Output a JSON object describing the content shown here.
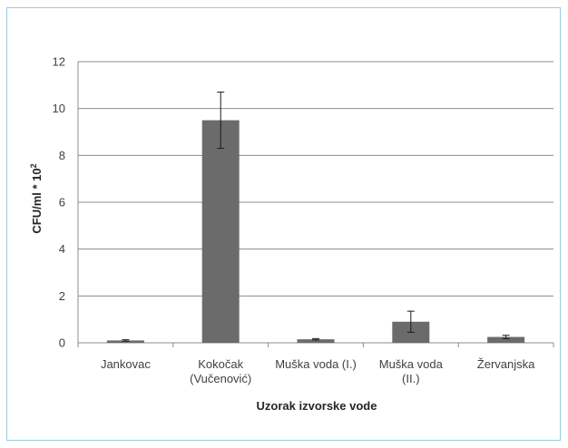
{
  "chart_data": {
    "type": "bar",
    "categories": [
      [
        "Jankovac"
      ],
      [
        "Kokočak",
        "(Vučenović)"
      ],
      [
        "Muška voda (I.)"
      ],
      [
        "Muška voda",
        "(II.)"
      ],
      [
        "Žervanjska"
      ]
    ],
    "values": [
      0.1,
      9.5,
      0.15,
      0.9,
      0.25
    ],
    "error": [
      0.03,
      1.2,
      0.03,
      0.45,
      0.07
    ],
    "xlabel": "Uzorak izvorske vode",
    "ylabel": "CFU/ml * 10",
    "ylabel_superscript": "2",
    "ylim": [
      0,
      12
    ],
    "yticks": [
      0,
      2,
      4,
      6,
      8,
      10,
      12
    ],
    "grid": true,
    "bar_color": "#6b6b6b",
    "grid_color": "#8c8c8c"
  }
}
